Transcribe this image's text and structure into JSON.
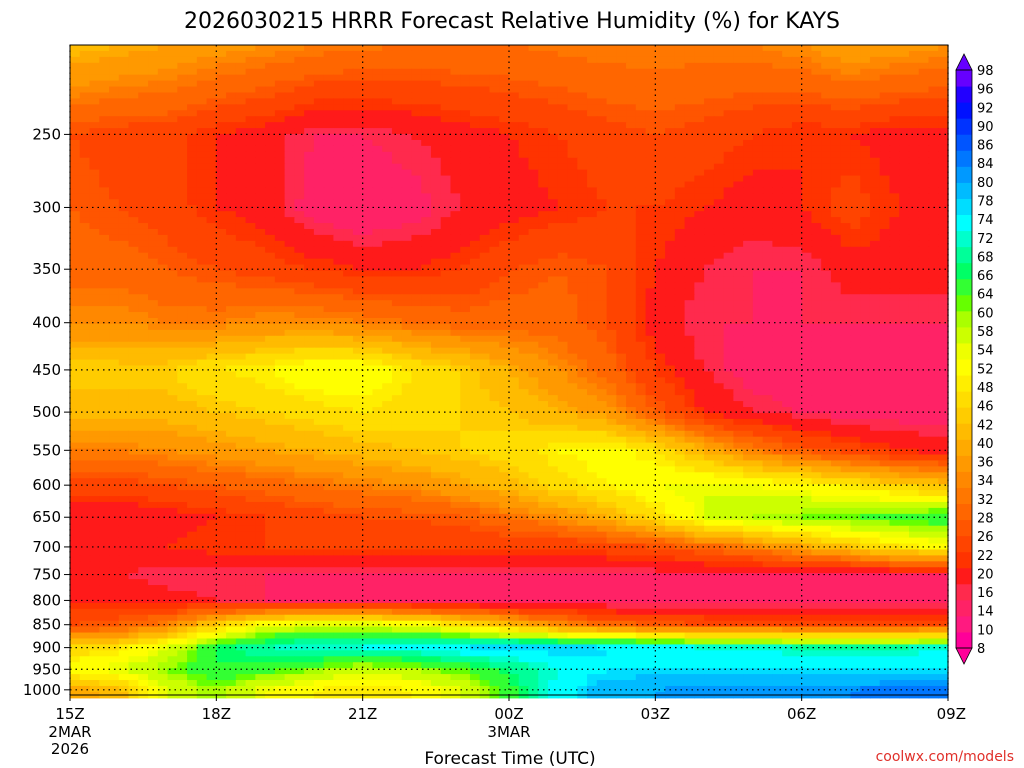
{
  "chart_data": {
    "type": "heatmap",
    "title": "2026030215 HRRR Forecast Relative Humidity (%) for KAYS",
    "xlabel": "Forecast Time (UTC)",
    "ylabel": "",
    "x_ticks": [
      {
        "hour": 0,
        "label": "15Z",
        "sub1": "2MAR",
        "sub2": "2026"
      },
      {
        "hour": 3,
        "label": "18Z",
        "sub1": "",
        "sub2": ""
      },
      {
        "hour": 6,
        "label": "21Z",
        "sub1": "",
        "sub2": ""
      },
      {
        "hour": 9,
        "label": "00Z",
        "sub1": "3MAR",
        "sub2": ""
      },
      {
        "hour": 12,
        "label": "03Z",
        "sub1": "",
        "sub2": ""
      },
      {
        "hour": 15,
        "label": "06Z",
        "sub1": "",
        "sub2": ""
      },
      {
        "hour": 18,
        "label": "09Z",
        "sub1": "",
        "sub2": ""
      }
    ],
    "y_ticks": [
      "250",
      "300",
      "350",
      "400",
      "450",
      "500",
      "550",
      "600",
      "650",
      "700",
      "750",
      "800",
      "850",
      "900",
      "950",
      "1000"
    ],
    "y_tick_values": [
      250,
      300,
      350,
      400,
      450,
      500,
      550,
      600,
      650,
      700,
      750,
      800,
      850,
      900,
      950,
      1000
    ],
    "y_axis": "pressure-log",
    "ylim": [
      200,
      1013
    ],
    "xlim": [
      0,
      18
    ],
    "colorbar_levels": [
      "8",
      "10",
      "14",
      "16",
      "20",
      "22",
      "26",
      "28",
      "32",
      "34",
      "36",
      "40",
      "42",
      "46",
      "48",
      "52",
      "54",
      "58",
      "60",
      "64",
      "66",
      "68",
      "72",
      "74",
      "78",
      "80",
      "84",
      "86",
      "90",
      "92",
      "96",
      "98"
    ],
    "colorbar_colors": [
      "#ff0099",
      "#ff1a80",
      "#ff2266",
      "#ff2a4d",
      "#ff1a1a",
      "#ff3300",
      "#ff4400",
      "#ff5500",
      "#ff6600",
      "#ff7700",
      "#ff8800",
      "#ff9900",
      "#ffaa00",
      "#ffbb00",
      "#ffcc00",
      "#ffdd00",
      "#ffee00",
      "#ffff00",
      "#eeff00",
      "#ccff00",
      "#aaff00",
      "#66ff00",
      "#33ff33",
      "#00ff66",
      "#00ff99",
      "#00ffcc",
      "#00ffff",
      "#00ddff",
      "#00bbff",
      "#0099ff",
      "#0077ff",
      "#0055ff",
      "#0033ff",
      "#0011ff",
      "#2200ff",
      "#6600ff"
    ],
    "x_hours": [
      0,
      1,
      2,
      3,
      4,
      5,
      6,
      7,
      8,
      9,
      10,
      11,
      12,
      13,
      14,
      15,
      16,
      17,
      18
    ],
    "pressure_levels": [
      200,
      250,
      300,
      350,
      400,
      450,
      500,
      550,
      600,
      650,
      700,
      750,
      800,
      850,
      900,
      950,
      1000
    ],
    "rh_values": [
      [
        44,
        42,
        40,
        38,
        36,
        34,
        33,
        32,
        32,
        32,
        33,
        34,
        34,
        34,
        34,
        36,
        40,
        38,
        36
      ],
      [
        26,
        24,
        24,
        20,
        18,
        14,
        14,
        16,
        18,
        20,
        22,
        24,
        26,
        24,
        22,
        20,
        20,
        18,
        18
      ],
      [
        28,
        26,
        24,
        20,
        18,
        12,
        10,
        12,
        16,
        18,
        20,
        22,
        22,
        20,
        18,
        20,
        24,
        20,
        20
      ],
      [
        30,
        30,
        28,
        26,
        24,
        22,
        20,
        20,
        22,
        26,
        28,
        26,
        20,
        16,
        14,
        14,
        18,
        18,
        18
      ],
      [
        36,
        36,
        34,
        34,
        36,
        36,
        34,
        32,
        30,
        30,
        30,
        26,
        18,
        14,
        14,
        14,
        14,
        14,
        14
      ],
      [
        48,
        48,
        48,
        52,
        54,
        58,
        58,
        52,
        48,
        42,
        36,
        30,
        22,
        16,
        12,
        10,
        10,
        10,
        10
      ],
      [
        44,
        44,
        44,
        46,
        48,
        50,
        52,
        50,
        48,
        46,
        42,
        38,
        28,
        20,
        16,
        14,
        12,
        12,
        12
      ],
      [
        34,
        34,
        36,
        38,
        40,
        42,
        44,
        46,
        48,
        50,
        54,
        56,
        52,
        42,
        34,
        28,
        24,
        20,
        18
      ],
      [
        24,
        24,
        26,
        28,
        30,
        32,
        34,
        36,
        40,
        44,
        50,
        54,
        58,
        60,
        58,
        56,
        52,
        48,
        44
      ],
      [
        16,
        16,
        18,
        20,
        22,
        24,
        26,
        26,
        28,
        32,
        36,
        42,
        50,
        60,
        64,
        66,
        68,
        70,
        72
      ],
      [
        20,
        20,
        20,
        22,
        22,
        22,
        22,
        22,
        22,
        22,
        22,
        24,
        26,
        30,
        34,
        40,
        46,
        52,
        56
      ],
      [
        16,
        16,
        14,
        14,
        14,
        14,
        14,
        14,
        14,
        14,
        14,
        14,
        14,
        14,
        14,
        14,
        14,
        14,
        14
      ],
      [
        20,
        20,
        18,
        16,
        14,
        12,
        12,
        12,
        12,
        12,
        12,
        12,
        12,
        12,
        12,
        12,
        12,
        12,
        12
      ],
      [
        26,
        28,
        34,
        48,
        58,
        62,
        62,
        58,
        52,
        44,
        36,
        30,
        28,
        26,
        26,
        24,
        24,
        24,
        26
      ],
      [
        48,
        52,
        60,
        72,
        78,
        80,
        80,
        82,
        84,
        86,
        86,
        84,
        82,
        80,
        80,
        78,
        78,
        78,
        80
      ],
      [
        58,
        60,
        66,
        72,
        70,
        66,
        62,
        64,
        68,
        74,
        80,
        84,
        84,
        84,
        84,
        84,
        84,
        84,
        84
      ],
      [
        40,
        44,
        60,
        66,
        58,
        54,
        52,
        54,
        60,
        70,
        82,
        88,
        90,
        92,
        92,
        92,
        92,
        94,
        94
      ]
    ]
  },
  "credit": "coolwx.com/models",
  "ground_color": "#a0522d"
}
